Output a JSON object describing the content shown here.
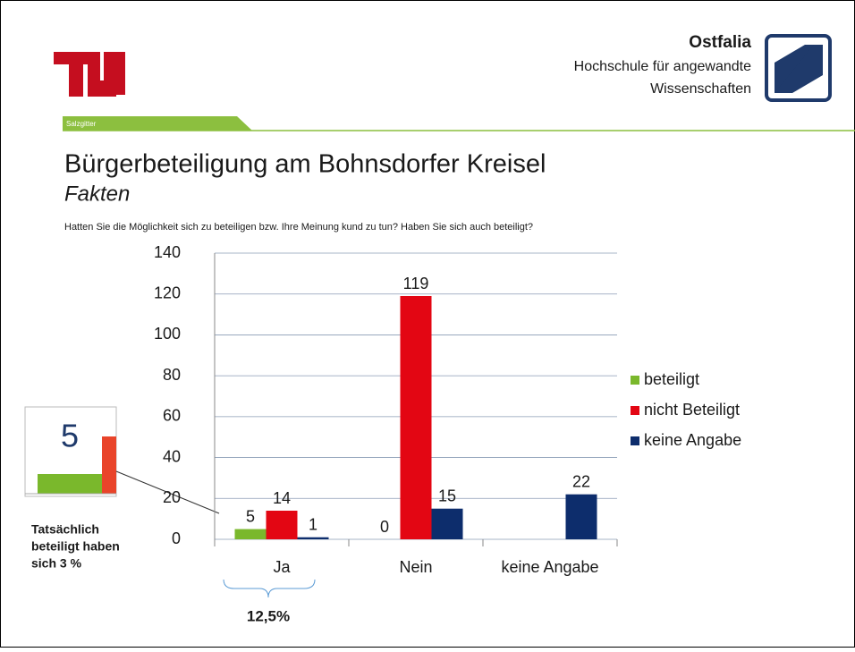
{
  "header": {
    "logo_tag": "Salzgitter",
    "institution": [
      "Ostfalia",
      "Hochschule für angewandte",
      "Wissenschaften"
    ]
  },
  "chart_data": {
    "type": "bar",
    "title": "Bürgerbeteiligung am Bohnsdorfer Kreisel",
    "subtitle": "Fakten",
    "question": "Hatten Sie die Möglichkeit sich zu beteiligen bzw. Ihre Meinung kund zu tun? Haben Sie sich auch beteiligt?",
    "categories": [
      "Ja",
      "Nein",
      "keine Angabe"
    ],
    "series": [
      {
        "name": "beteiligt",
        "color": "#7ab82c",
        "values": [
          5,
          0,
          null
        ],
        "value_labels": [
          "5",
          "0",
          null
        ]
      },
      {
        "name": "nicht Beteiligt",
        "color": "#e30613",
        "values": [
          14,
          119,
          null
        ],
        "value_labels": [
          "14",
          "119",
          null
        ]
      },
      {
        "name": "keine Angabe",
        "color": "#0d2d6c",
        "values": [
          1,
          15,
          22
        ],
        "value_labels": [
          "1",
          "15",
          "22"
        ]
      }
    ],
    "ylim": [
      0,
      140
    ],
    "yticks": [
      0,
      20,
      40,
      60,
      80,
      100,
      120,
      140
    ],
    "grid": true,
    "legend": "right"
  },
  "annotations": {
    "inset_label": "5",
    "note": [
      "Tatsächlich",
      "beteiligt haben",
      "sich 3 %"
    ],
    "brace_label": "12,5%"
  }
}
